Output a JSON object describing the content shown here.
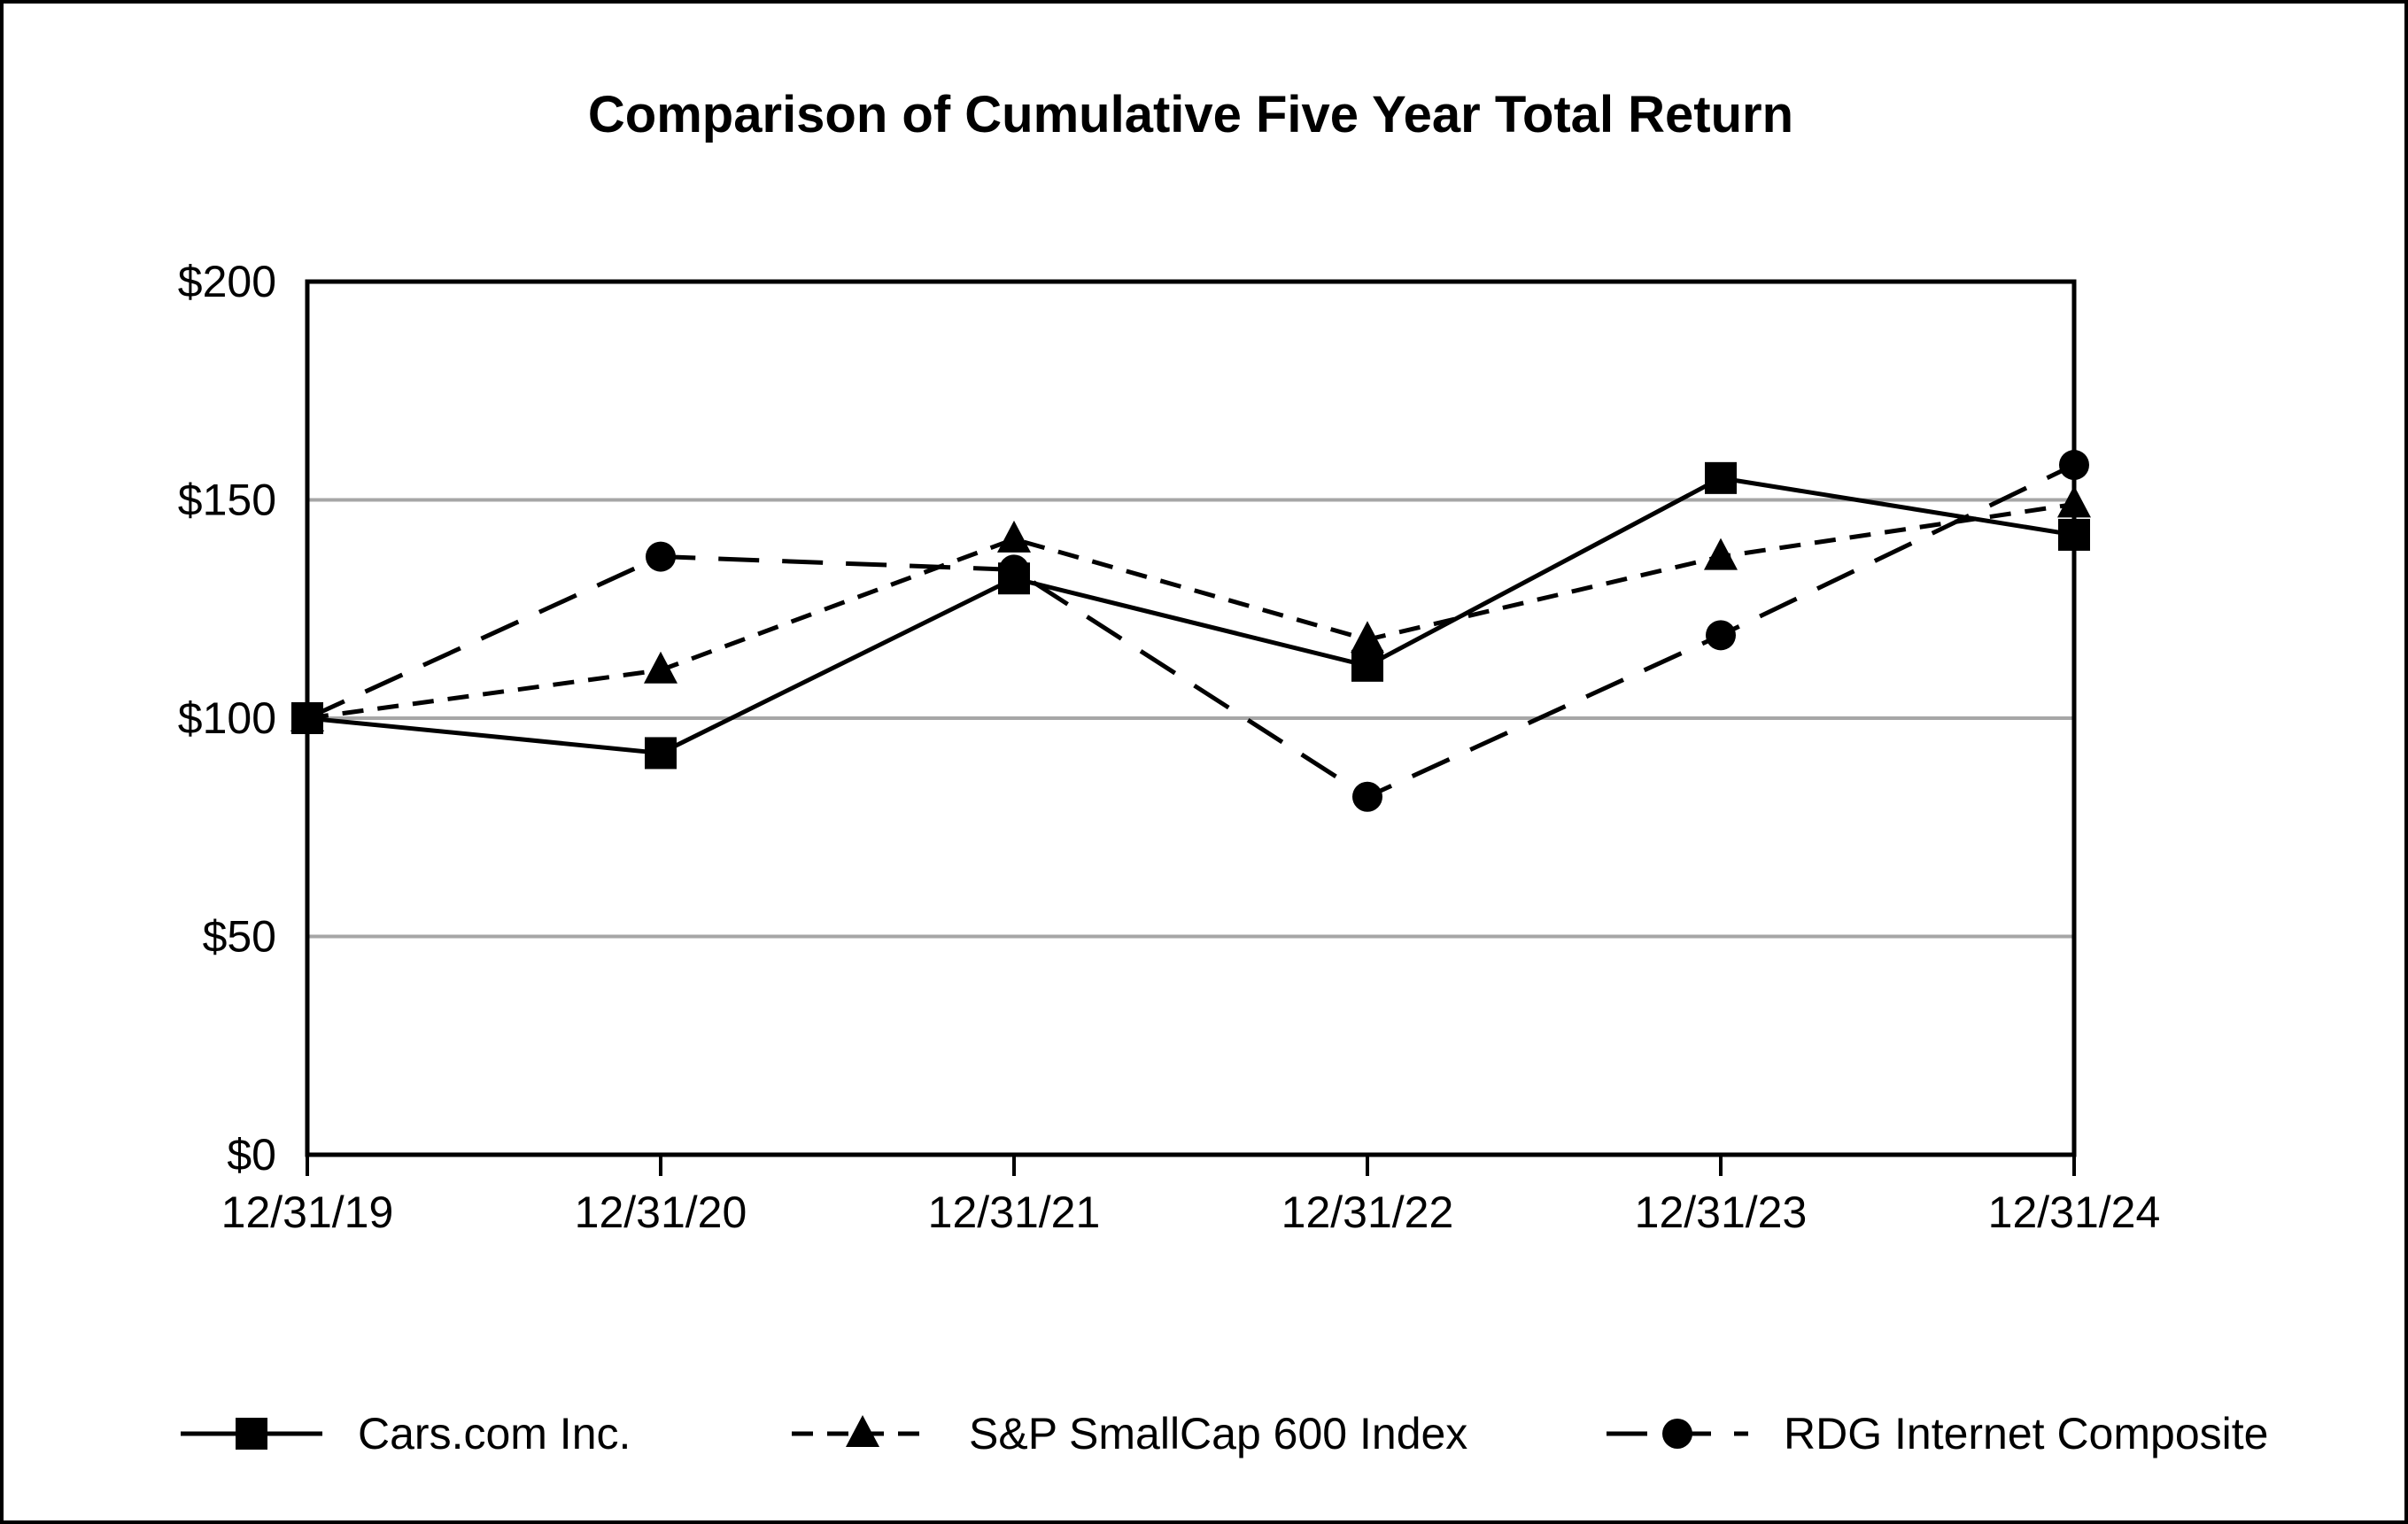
{
  "chart_data": {
    "type": "line",
    "title": "Comparison of Cumulative Five Year Total Return",
    "x": [
      "12/31/19",
      "12/31/20",
      "12/31/21",
      "12/31/22",
      "12/31/23",
      "12/31/24"
    ],
    "y_prefix": "$",
    "yticks": [
      0,
      50,
      100,
      150,
      200
    ],
    "ylim": [
      0,
      200
    ],
    "grid": "horizontal",
    "legend_position": "bottom",
    "series": [
      {
        "name": "Cars.com Inc.",
        "marker": "square",
        "line": "solid",
        "values": [
          100,
          92,
          132,
          112,
          155,
          142
        ]
      },
      {
        "name": "S&P SmallCap 600 Index",
        "marker": "triangle",
        "line": "dashed",
        "values": [
          100,
          111,
          141,
          118,
          137,
          149
        ]
      },
      {
        "name": "RDG Internet Composite",
        "marker": "circle",
        "line": "long-dash",
        "values": [
          100,
          137,
          134,
          82,
          119,
          158
        ]
      }
    ]
  },
  "colors": {
    "foreground": "#000000",
    "grid": "#a6a6a6",
    "background": "#ffffff"
  }
}
